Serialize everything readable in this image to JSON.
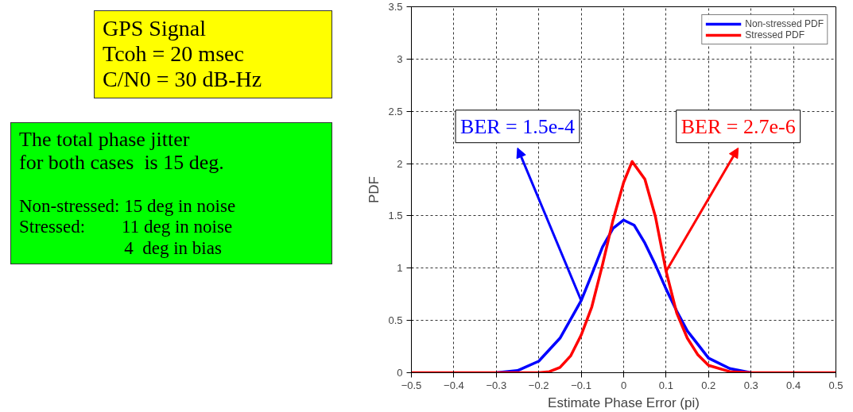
{
  "chart_data": {
    "type": "line",
    "xlabel": "Estimate Phase Error (pi)",
    "ylabel": "PDF",
    "xlim": [
      -0.5,
      0.5
    ],
    "xticks": [
      -0.5,
      -0.4,
      -0.3,
      -0.2,
      -0.1,
      0,
      0.1,
      0.2,
      0.3,
      0.4,
      0.5
    ],
    "ylim": [
      0,
      3.5
    ],
    "yticks": [
      0,
      0.5,
      1,
      1.5,
      2,
      2.5,
      3,
      3.5
    ],
    "grid": true,
    "legend": "top right",
    "series": [
      {
        "name": "Non-stressed PDF",
        "color": "#0000ff",
        "x": [
          -0.3,
          -0.25,
          -0.2,
          -0.15,
          -0.1,
          -0.075,
          -0.05,
          -0.025,
          0,
          0.025,
          0.05,
          0.075,
          0.1,
          0.125,
          0.15,
          0.175,
          0.2,
          0.25,
          0.3
        ],
        "values": [
          0,
          0.02,
          0.11,
          0.33,
          0.69,
          0.94,
          1.2,
          1.38,
          1.46,
          1.41,
          1.24,
          1.03,
          0.8,
          0.59,
          0.4,
          0.27,
          0.14,
          0.04,
          0
        ]
      },
      {
        "name": "Stressed PDF",
        "color": "#ff0000",
        "x": [
          -0.5,
          -0.2,
          -0.175,
          -0.15,
          -0.125,
          -0.1,
          -0.075,
          -0.05,
          -0.025,
          0,
          0.02,
          0.05,
          0.075,
          0.1,
          0.125,
          0.15,
          0.175,
          0.2,
          0.25,
          0.3,
          0.5
        ],
        "values": [
          0,
          0,
          0.01,
          0.05,
          0.16,
          0.36,
          0.63,
          1.03,
          1.46,
          1.82,
          2.02,
          1.85,
          1.49,
          0.97,
          0.57,
          0.33,
          0.17,
          0.07,
          0.01,
          0,
          0
        ]
      }
    ],
    "annotations": [
      "GPS Signal\nTcoh = 20 msec\nC/N0 = 30 dB-Hz",
      "The total phase jitter\nfor both cases  is 15 deg.\n\nNon-stressed: 15 deg in noise\nStressed:        11 deg in noise\n                       4  deg in bias",
      {
        "text": "BER = 1.5e-4",
        "x": -0.1,
        "y": 0.69
      },
      {
        "text": "BER = 2.7e-6",
        "x": 0.1,
        "y": 0.97
      }
    ]
  }
}
